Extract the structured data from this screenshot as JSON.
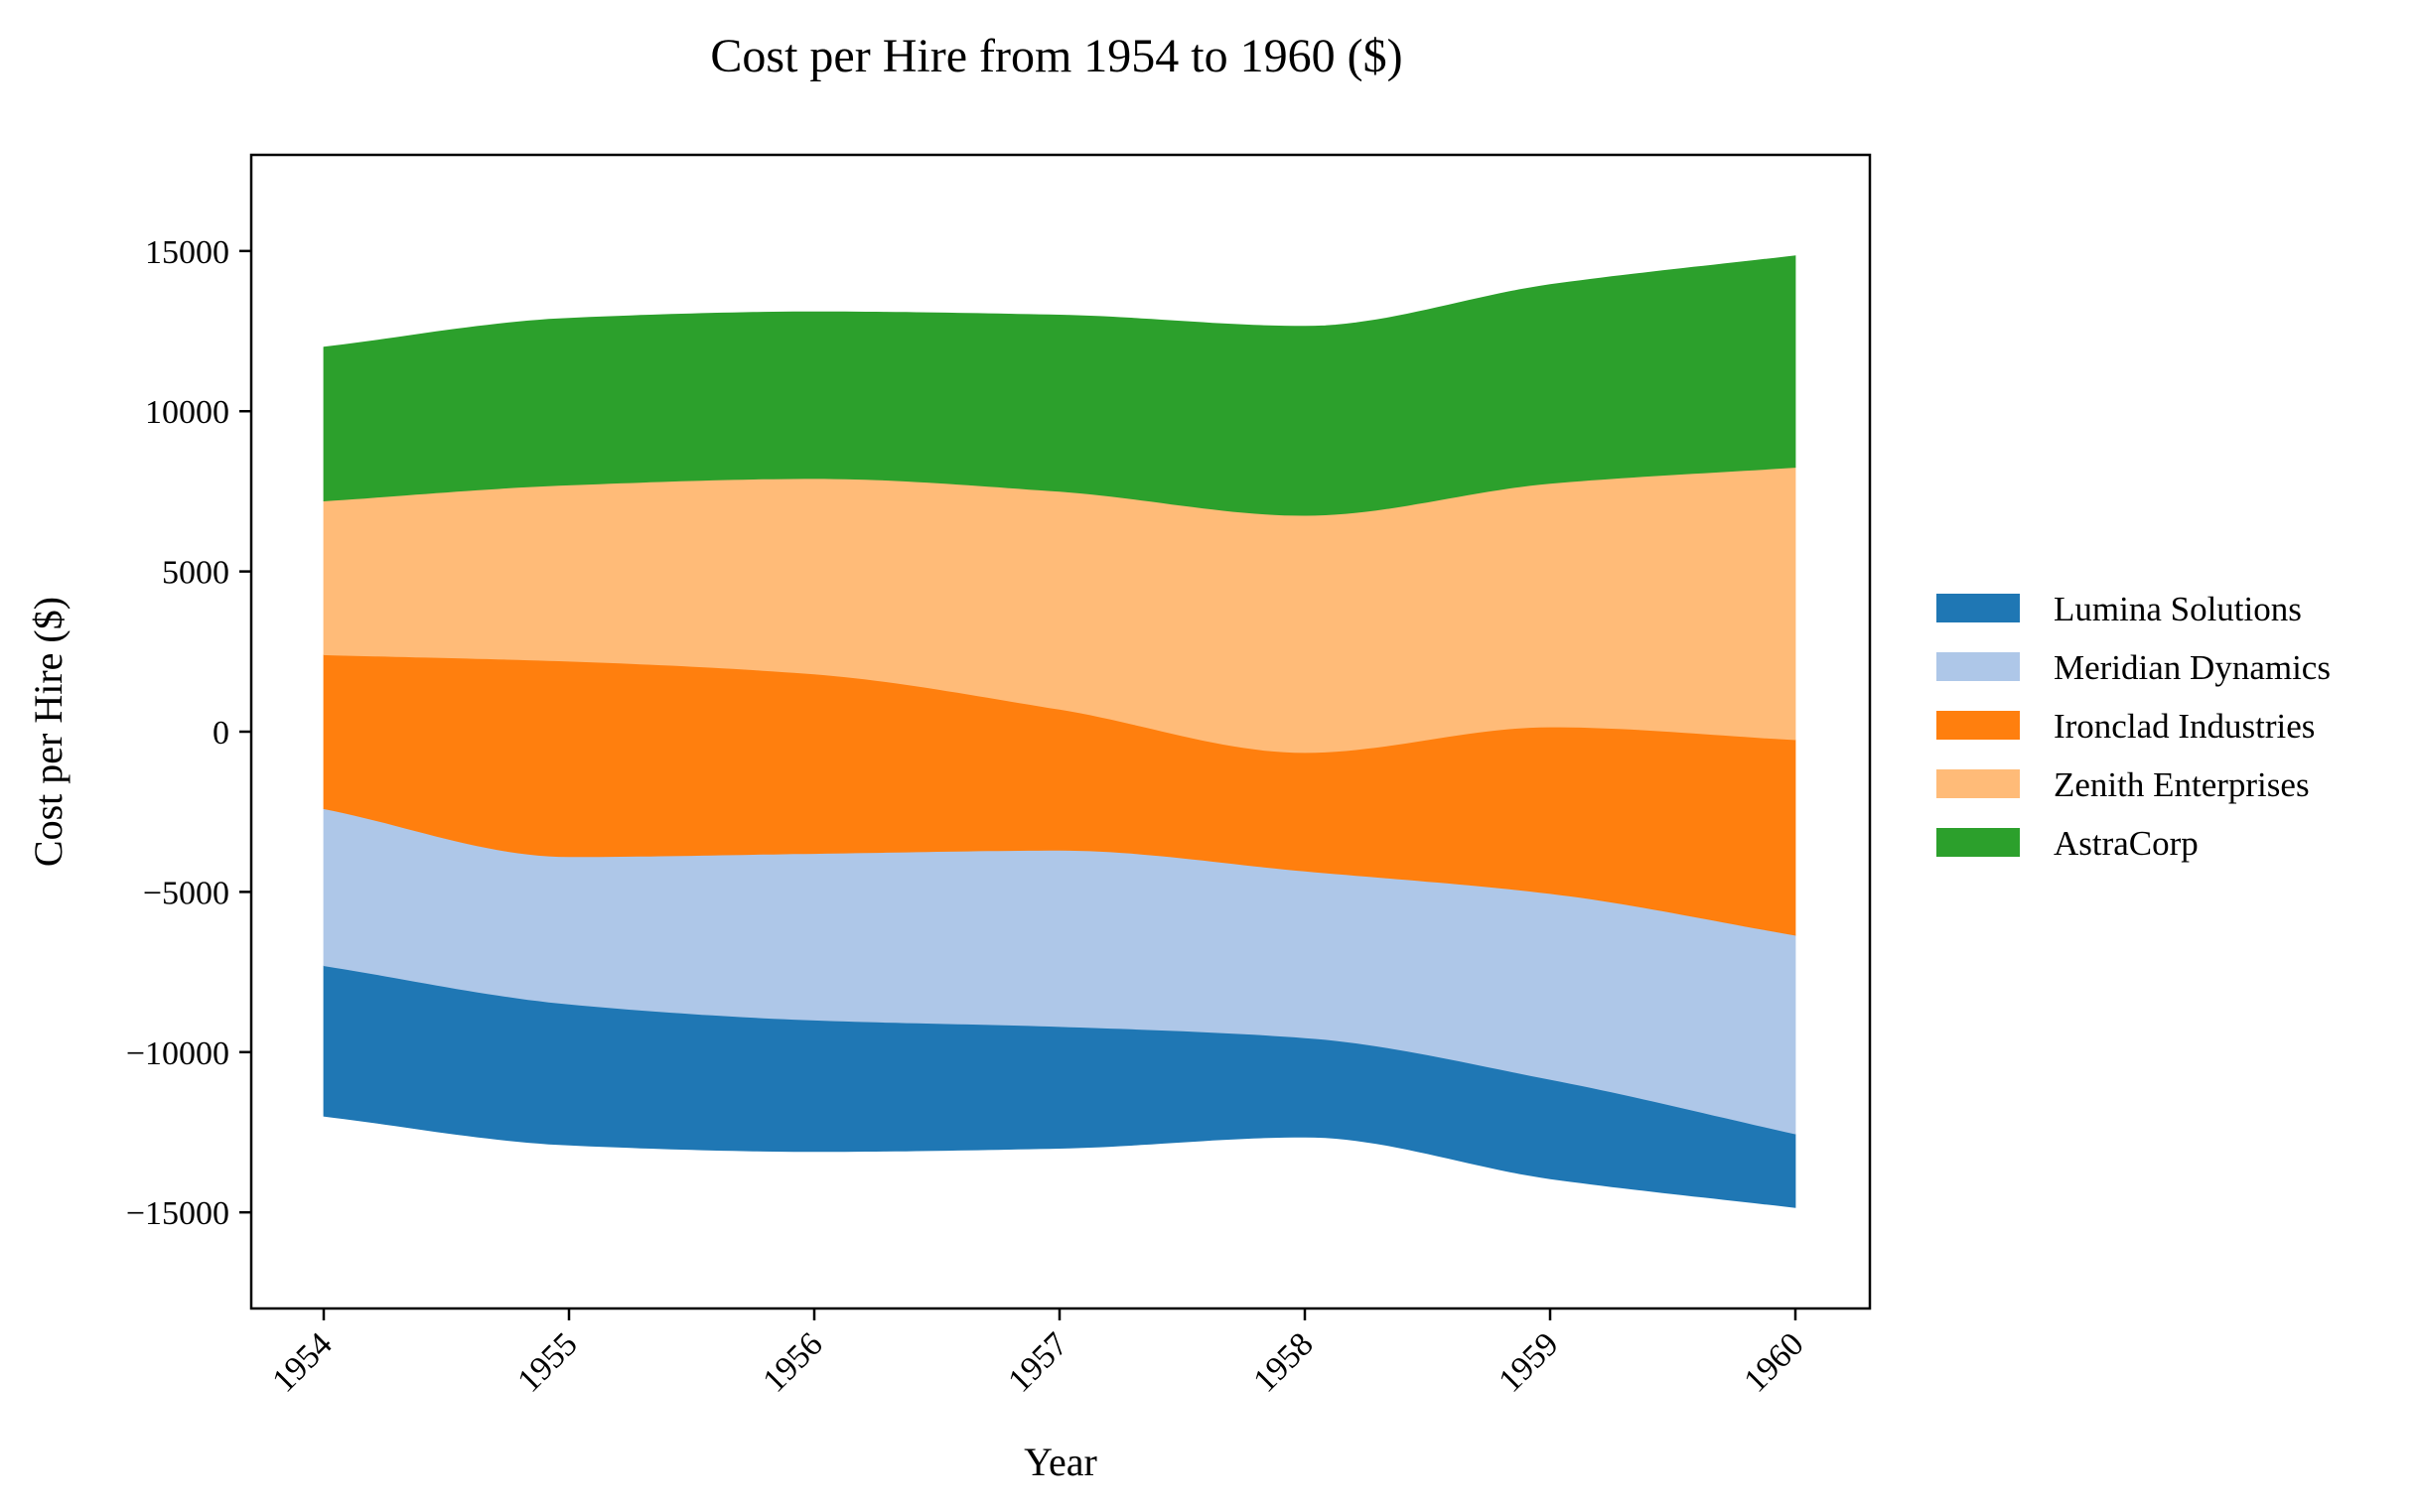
{
  "chart_data": {
    "type": "area",
    "subtype": "streamgraph",
    "title": "Cost per Hire from 1954 to 1960 ($)",
    "xlabel": "Year",
    "ylabel": "Cost per Hire ($)",
    "x": [
      "1954",
      "1955",
      "1956",
      "1957",
      "1958",
      "1959",
      "1960"
    ],
    "ylim": [
      -18000,
      18000
    ],
    "yticks": [
      -15000,
      -10000,
      -5000,
      0,
      5000,
      10000,
      15000
    ],
    "ytick_labels": [
      "−15000",
      "−10000",
      "−5000",
      "0",
      "5000",
      "10000",
      "15000"
    ],
    "baseline": "symmetric",
    "grid": false,
    "legend_position": "right",
    "series": [
      {
        "name": "Lumina Solutions",
        "color": "#1f77b4",
        "values": [
          4700,
          4400,
          4100,
          3800,
          3100,
          3100,
          2300
        ]
      },
      {
        "name": "Meridian Dynamics",
        "color": "#aec7e8",
        "values": [
          4900,
          4600,
          5200,
          5500,
          5200,
          5800,
          6200
        ]
      },
      {
        "name": "Ironclad Industries",
        "color": "#ff7f0e",
        "values": [
          4800,
          6100,
          5600,
          4400,
          3700,
          5200,
          6100
        ]
      },
      {
        "name": "Zenith Enterprises",
        "color": "#ffbb78",
        "values": [
          4800,
          5500,
          6100,
          6800,
          7400,
          7600,
          8500
        ]
      },
      {
        "name": "AstraCorp",
        "color": "#2ca02c",
        "values": [
          4800,
          5200,
          5200,
          5500,
          5900,
          6200,
          6600
        ]
      }
    ]
  }
}
